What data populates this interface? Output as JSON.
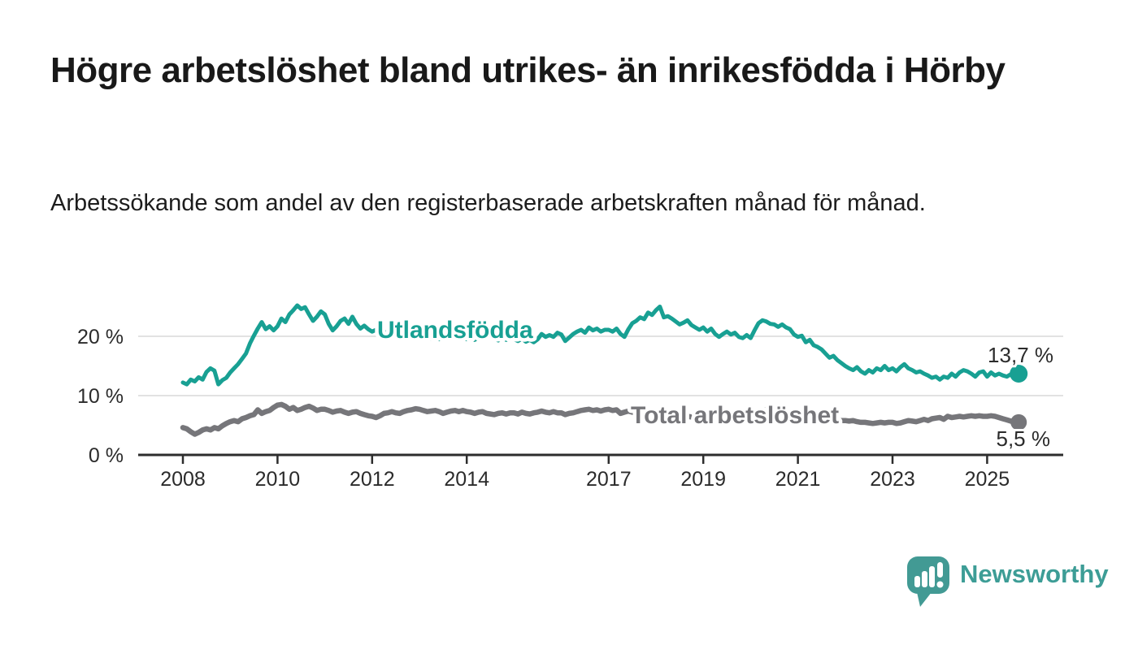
{
  "header": {
    "title": "Högre arbetslöshet bland utrikes- än inrikesfödda i Hörby",
    "subtitle": "Arbetssökande som andel av den registerbaserade arbetskraften månad för månad."
  },
  "branding": {
    "logo_text": "Newsworthy",
    "logo_icon": "newsworthy-speech-bubble-bar-chart-icon",
    "accent_color": "#3d9d96"
  },
  "colors": {
    "series_foreign_born": "#18a093",
    "series_total": "#76767a",
    "gridline": "#d8d8d8",
    "axis": "#2d2d2d",
    "text": "#1a1a1a"
  },
  "chart_data": {
    "type": "line",
    "title": "",
    "xlabel": "",
    "ylabel": "",
    "x_axis": {
      "tick_years": [
        2008,
        2010,
        2012,
        2014,
        2017,
        2019,
        2021,
        2023,
        2025
      ],
      "range_years": [
        2007.05,
        2026.6
      ],
      "data_start": "2008-01",
      "data_end": "2025-09",
      "frequency": "monthly"
    },
    "y_axis": {
      "tick_values": [
        0,
        10,
        20
      ],
      "tick_labels": [
        "0 %",
        "10 %",
        "20 %"
      ],
      "range": [
        0,
        26.5
      ],
      "grid": true,
      "unit": "%"
    },
    "series": [
      {
        "name": "Utlandsfödda",
        "color": "#18a093",
        "line_width": 5,
        "end_label": "13,7 %",
        "end_value": 13.7,
        "start_year": 2008,
        "monthly_values": [
          12.2,
          11.9,
          12.7,
          12.4,
          13.1,
          12.7,
          14.0,
          14.6,
          14.2,
          11.9,
          12.6,
          13.0,
          13.9,
          14.6,
          15.3,
          16.2,
          17.1,
          18.8,
          20.1,
          21.3,
          22.4,
          21.2,
          21.7,
          21.0,
          21.7,
          23.0,
          22.4,
          23.7,
          24.4,
          25.2,
          24.6,
          24.9,
          23.7,
          22.6,
          23.3,
          24.2,
          23.7,
          22.1,
          21.0,
          21.7,
          22.6,
          23.0,
          22.1,
          23.3,
          22.1,
          21.3,
          21.8,
          21.2,
          20.8,
          21.1,
          20.5,
          20.9,
          20.2,
          20.6,
          21.0,
          20.4,
          20.7,
          20.1,
          20.5,
          19.9,
          20.3,
          19.8,
          20.2,
          19.6,
          20.0,
          19.5,
          19.9,
          20.3,
          19.7,
          20.1,
          19.6,
          20.0,
          19.5,
          19.9,
          19.4,
          19.8,
          20.2,
          19.7,
          20.1,
          19.6,
          19.3,
          19.8,
          19.4,
          19.9,
          19.5,
          19.2,
          19.6,
          19.1,
          19.4,
          19.0,
          19.5,
          20.4,
          19.9,
          20.2,
          19.9,
          20.6,
          20.3,
          19.2,
          19.8,
          20.4,
          20.8,
          21.1,
          20.6,
          21.5,
          21.0,
          21.3,
          20.8,
          21.1,
          21.1,
          20.8,
          21.3,
          20.4,
          19.9,
          21.2,
          22.2,
          22.6,
          23.2,
          22.9,
          24.0,
          23.6,
          24.4,
          25.0,
          23.2,
          23.4,
          23.0,
          22.5,
          22.0,
          22.3,
          22.7,
          21.9,
          21.5,
          21.1,
          21.5,
          20.8,
          21.3,
          20.4,
          19.9,
          20.4,
          20.8,
          20.3,
          20.6,
          19.9,
          19.7,
          20.2,
          19.7,
          21.0,
          22.2,
          22.7,
          22.5,
          22.1,
          22.0,
          21.6,
          22.0,
          21.5,
          21.2,
          20.3,
          19.9,
          20.1,
          19.0,
          19.4,
          18.5,
          18.2,
          17.8,
          17.1,
          16.4,
          16.7,
          16.0,
          15.5,
          15.0,
          14.6,
          14.3,
          14.8,
          14.1,
          13.7,
          14.3,
          13.9,
          14.6,
          14.3,
          15.0,
          14.3,
          14.6,
          14.1,
          14.8,
          15.3,
          14.6,
          14.3,
          13.9,
          14.1,
          13.7,
          13.4,
          13.0,
          13.2,
          12.7,
          13.2,
          13.0,
          13.7,
          13.2,
          13.9,
          14.3,
          14.1,
          13.7,
          13.2,
          13.9,
          14.1,
          13.2,
          13.9,
          13.4,
          13.7,
          13.4,
          13.2,
          13.6,
          13.4,
          13.7
        ]
      },
      {
        "name": "Total arbetslöshet",
        "color": "#76767a",
        "line_width": 6.5,
        "end_label": "5,5 %",
        "end_value": 5.5,
        "start_year": 2008,
        "monthly_values": [
          4.6,
          4.4,
          3.9,
          3.5,
          3.8,
          4.2,
          4.4,
          4.2,
          4.6,
          4.4,
          4.9,
          5.3,
          5.6,
          5.8,
          5.6,
          6.1,
          6.3,
          6.6,
          6.8,
          7.6,
          7.0,
          7.3,
          7.5,
          8.0,
          8.4,
          8.5,
          8.2,
          7.7,
          8.0,
          7.5,
          7.7,
          8.0,
          8.2,
          7.9,
          7.5,
          7.7,
          7.7,
          7.5,
          7.2,
          7.4,
          7.5,
          7.2,
          7.0,
          7.2,
          7.3,
          7.0,
          6.8,
          6.6,
          6.5,
          6.3,
          6.6,
          7.0,
          7.1,
          7.3,
          7.1,
          7.0,
          7.3,
          7.5,
          7.6,
          7.8,
          7.7,
          7.5,
          7.3,
          7.4,
          7.5,
          7.3,
          7.0,
          7.2,
          7.4,
          7.5,
          7.3,
          7.5,
          7.3,
          7.2,
          7.0,
          7.2,
          7.3,
          7.0,
          6.9,
          6.8,
          7.0,
          7.1,
          6.9,
          7.1,
          7.1,
          6.9,
          7.2,
          7.0,
          6.9,
          7.1,
          7.2,
          7.4,
          7.2,
          7.1,
          7.3,
          7.1,
          7.1,
          6.8,
          7.0,
          7.1,
          7.3,
          7.5,
          7.6,
          7.7,
          7.5,
          7.6,
          7.4,
          7.6,
          7.7,
          7.5,
          7.6,
          7.0,
          7.2,
          7.4,
          7.2,
          7.0,
          7.1,
          6.9,
          7.0,
          6.8,
          6.9,
          6.7,
          6.8,
          6.6,
          6.7,
          6.5,
          6.6,
          6.4,
          6.5,
          6.4,
          6.5,
          6.3,
          6.5,
          6.3,
          6.4,
          6.2,
          6.3,
          6.4,
          6.5,
          6.3,
          6.4,
          6.2,
          6.3,
          6.4,
          6.5,
          6.7,
          7.2,
          7.5,
          7.6,
          7.5,
          7.4,
          7.2,
          7.1,
          7.0,
          6.9,
          6.8,
          6.7,
          6.6,
          6.5,
          6.4,
          6.3,
          6.2,
          6.1,
          6.0,
          5.9,
          5.9,
          5.8,
          5.8,
          5.8,
          5.7,
          5.8,
          5.6,
          5.5,
          5.5,
          5.4,
          5.3,
          5.4,
          5.5,
          5.4,
          5.5,
          5.5,
          5.3,
          5.4,
          5.6,
          5.8,
          5.7,
          5.6,
          5.8,
          6.0,
          5.8,
          6.1,
          6.2,
          6.3,
          6.0,
          6.5,
          6.3,
          6.4,
          6.5,
          6.4,
          6.5,
          6.6,
          6.5,
          6.6,
          6.5,
          6.5,
          6.6,
          6.5,
          6.3,
          6.1,
          5.9,
          5.7,
          5.6,
          5.5
        ]
      }
    ],
    "legend_position": "inline-labels"
  }
}
